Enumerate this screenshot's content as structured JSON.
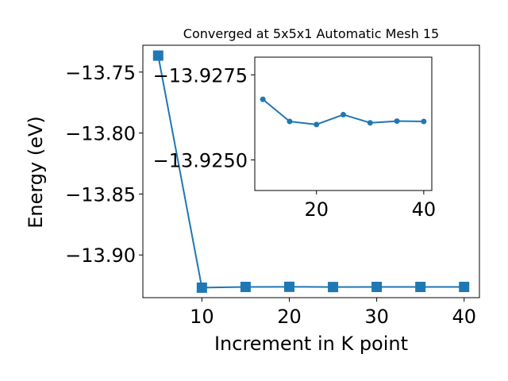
{
  "chart_data": [
    {
      "type": "line",
      "title": "Converged at 5x5x1 Automatic Mesh 15",
      "xlabel": "Increment in K point",
      "ylabel": "Energy (eV)",
      "x": [
        5,
        10,
        15,
        20,
        25,
        30,
        35,
        40
      ],
      "series": [
        {
          "values": [
            -13.7365,
            -13.9268,
            -13.9262,
            -13.9261,
            -13.9263,
            -13.9262,
            -13.9262,
            -13.9262
          ]
        }
      ],
      "xlim": [
        3.25,
        41.75
      ],
      "ylim": [
        -13.935,
        -13.728
      ],
      "xticks": [
        10,
        20,
        30,
        40
      ],
      "yticks": [
        -13.75,
        -13.8,
        -13.85,
        -13.9
      ],
      "xtick_labels": [
        "10",
        "20",
        "30",
        "40"
      ],
      "ytick_labels": [
        "−13.75",
        "−13.80",
        "−13.85",
        "−13.90"
      ],
      "marker": "square",
      "color": "#1f77b4",
      "grid": false
    },
    {
      "type": "line",
      "title": "",
      "xlabel": "",
      "ylabel": "",
      "x": [
        10,
        15,
        20,
        25,
        30,
        35,
        40
      ],
      "series": [
        {
          "values": [
            -13.92678,
            -13.92613,
            -13.92604,
            -13.92633,
            -13.92609,
            -13.92614,
            -13.92613
          ]
        }
      ],
      "xlim": [
        8.5,
        41.5
      ],
      "ylim": [
        -13.9241,
        -13.92802
      ],
      "xticks": [
        20,
        40
      ],
      "yticks": [
        -13.9275,
        -13.925
      ],
      "xtick_labels": [
        "20",
        "40"
      ],
      "ytick_labels": [
        "−13.9275",
        "−13.9250"
      ],
      "marker": "circle",
      "color": "#1f77b4",
      "grid": false
    }
  ]
}
